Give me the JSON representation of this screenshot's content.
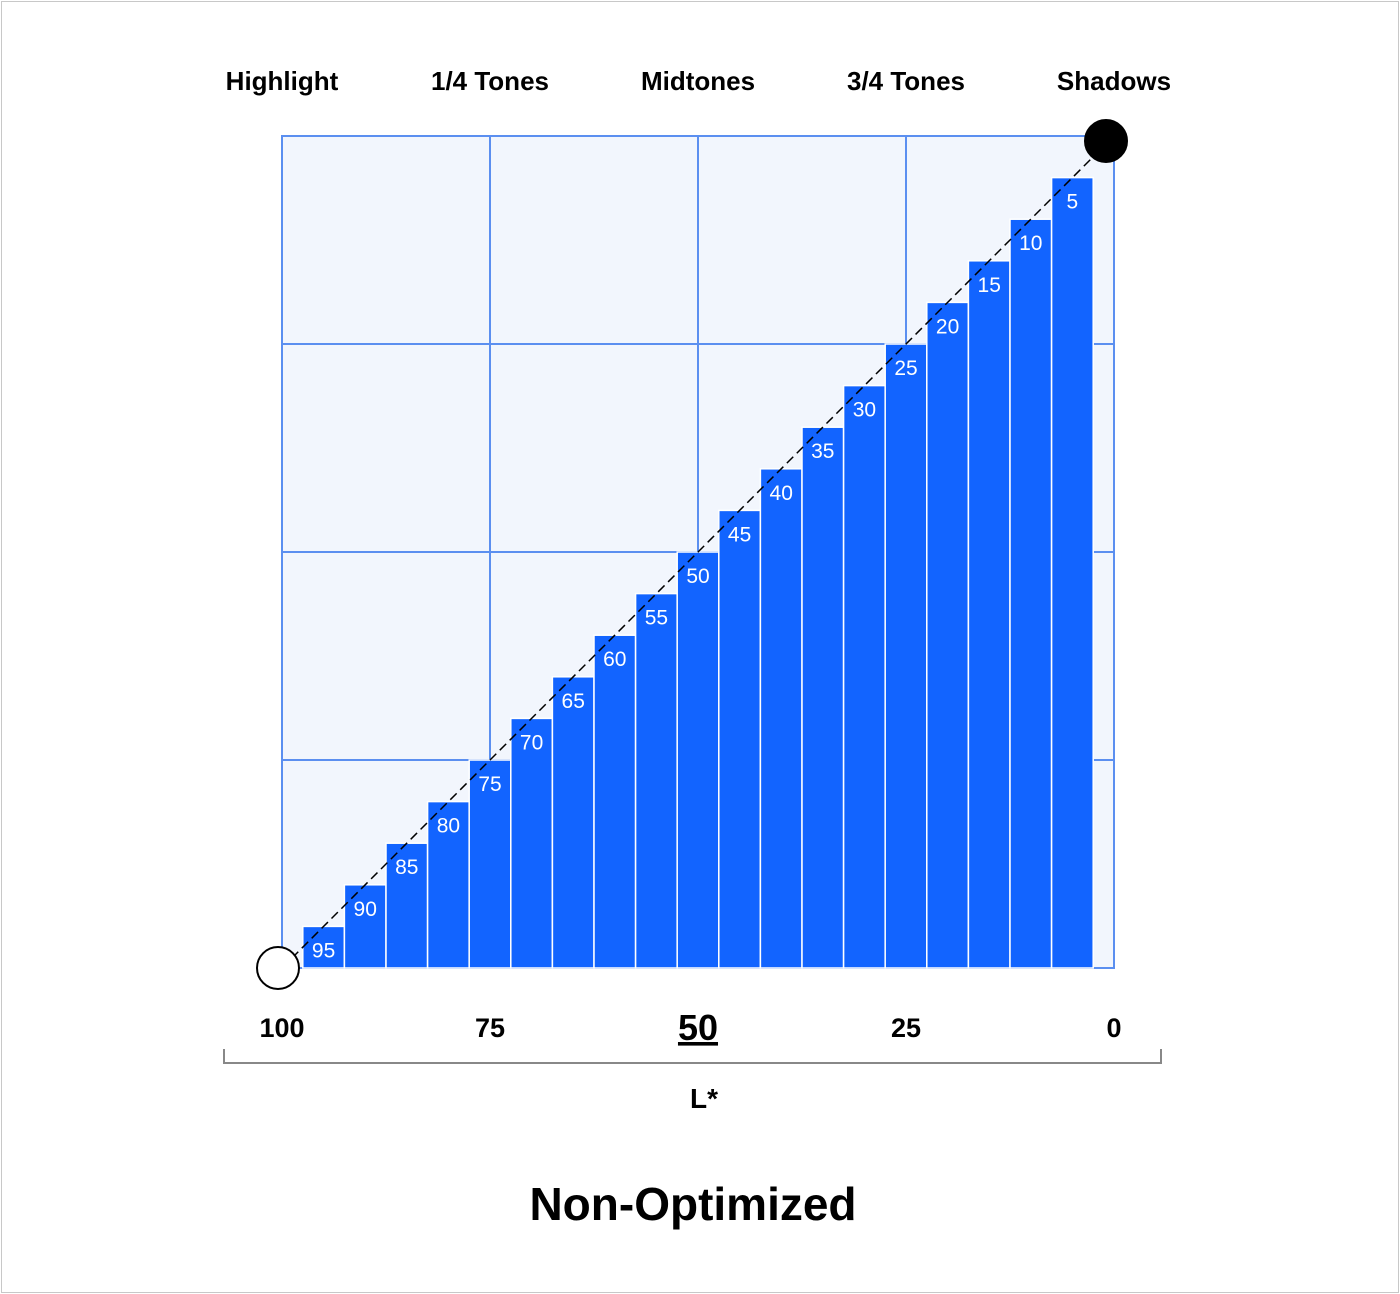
{
  "chart_data": {
    "type": "bar",
    "title": "Non-Optimized",
    "xlabel": "L*",
    "x_axis_reversed": true,
    "xlim": [
      100,
      0
    ],
    "x_ticks": [
      "100",
      "75",
      "50",
      "25",
      "0"
    ],
    "highlighted_tick": "50",
    "zone_labels": [
      "Highlight",
      "1/4 Tones",
      "Midtones",
      "3/4 Tones",
      "Shadows"
    ],
    "categories": [
      "95",
      "90",
      "85",
      "80",
      "75",
      "70",
      "65",
      "60",
      "55",
      "50",
      "45",
      "40",
      "35",
      "30",
      "25",
      "20",
      "15",
      "10",
      "5"
    ],
    "values": [
      5,
      10,
      15,
      20,
      25,
      30,
      35,
      40,
      45,
      50,
      55,
      60,
      65,
      70,
      75,
      80,
      85,
      90,
      95
    ],
    "ylim": [
      0,
      100
    ],
    "grid": true,
    "diagonal_reference_line": "dashed",
    "endpoints": [
      {
        "name": "white-point",
        "color": "#ffffff"
      },
      {
        "name": "black-point",
        "color": "#000000"
      }
    ],
    "colors": {
      "bar": "#1264ff",
      "grid_line": "#5b8ff0",
      "plot_background": "#f2f6fd",
      "bar_text": "#ffffff"
    }
  }
}
